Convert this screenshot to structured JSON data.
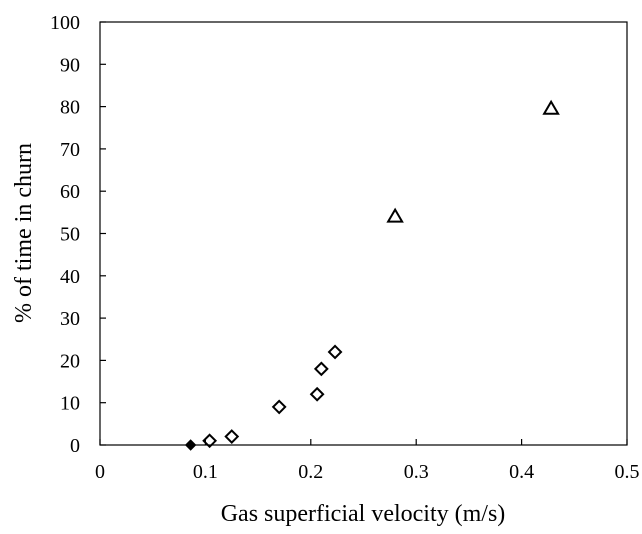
{
  "chart_data": {
    "type": "scatter",
    "xlabel": "Gas superficial velocity (m/s)",
    "ylabel": "% of time in churn",
    "xlim": [
      0,
      0.5
    ],
    "ylim": [
      0,
      100
    ],
    "xticks": [
      "0",
      "0.1",
      "0.2",
      "0.3",
      "0.4",
      "0.5"
    ],
    "yticks": [
      "0",
      "10",
      "20",
      "30",
      "40",
      "50",
      "60",
      "70",
      "80",
      "90",
      "100"
    ],
    "grid": false,
    "legend": "none",
    "series": [
      {
        "marker": "filled-diamond",
        "color": "#000000",
        "x": [
          0.086
        ],
        "y": [
          0
        ]
      },
      {
        "marker": "open-diamond",
        "color": "#000000",
        "x": [
          0.104,
          0.125,
          0.17,
          0.206,
          0.21,
          0.223
        ],
        "y": [
          1,
          2,
          9,
          12,
          18,
          22
        ]
      },
      {
        "marker": "open-triangle",
        "color": "#000000",
        "x": [
          0.28,
          0.428
        ],
        "y": [
          54,
          79.5
        ]
      }
    ]
  }
}
